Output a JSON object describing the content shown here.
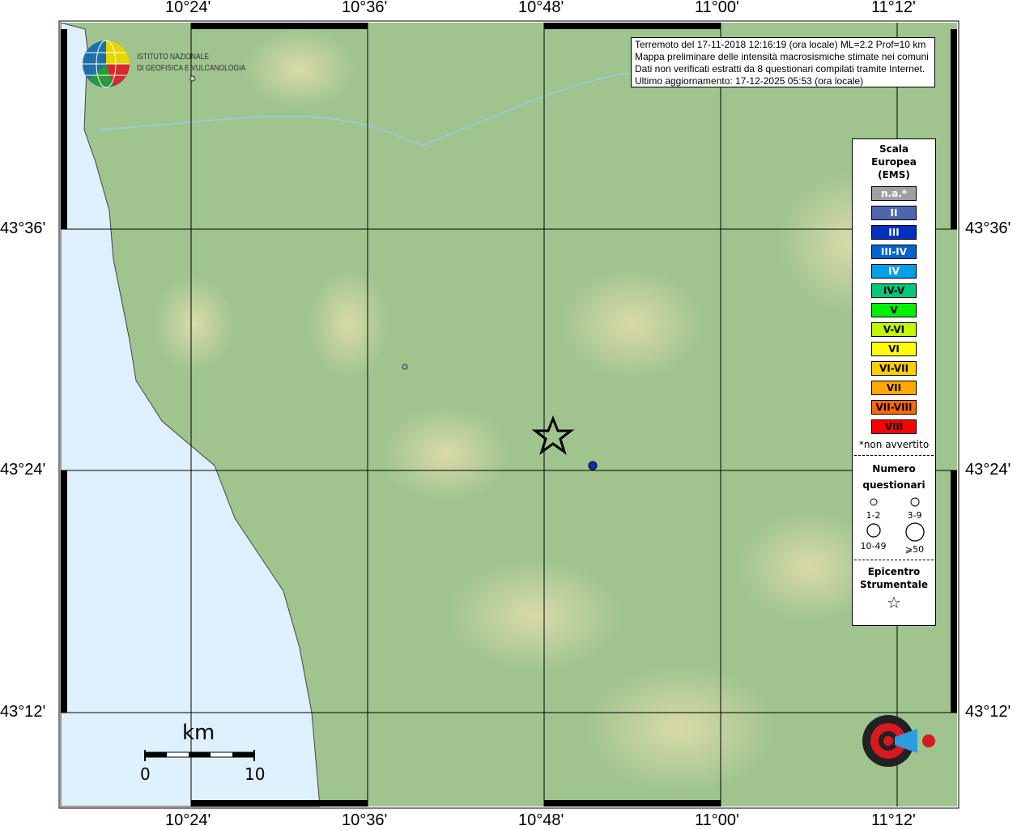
{
  "info": {
    "lines": [
      "Terremoto del 17-11-2018 12:16:19 (ora locale) ML=2.2 Prof=10 km",
      "Mappa preliminare delle intensità macrosismiche stimate nei comuni",
      "Dati non verificati estratti da 8 questionari compilati tramite Internet.",
      "Ultimo aggiornamento: 17-12-2025 05:53 (ora locale)"
    ]
  },
  "axes": {
    "lon": [
      "10°24'",
      "10°36'",
      "10°48'",
      "11°00'",
      "11°12'"
    ],
    "lat": [
      "43°36'",
      "43°24'",
      "43°12'"
    ]
  },
  "logo": {
    "line1": "ISTITUTO NAZIONALE",
    "line2": "DI GEOFISICA E VULCANOLOGIA",
    "hsit": "haisentitoilterremoto.it www"
  },
  "legend": {
    "title1": "Scala",
    "title2": "Europea",
    "title3": "(EMS)",
    "classes": [
      {
        "label": "n.a.*",
        "color": "#a0a0a0",
        "text": "#fff"
      },
      {
        "label": "II",
        "color": "#4f66ad",
        "text": "#fff"
      },
      {
        "label": "III",
        "color": "#0030c0",
        "text": "#fff"
      },
      {
        "label": "III-IV",
        "color": "#0064d0",
        "text": "#fff"
      },
      {
        "label": "IV",
        "color": "#00a0e8",
        "text": "#fff"
      },
      {
        "label": "IV-V",
        "color": "#00c878",
        "text": "#000"
      },
      {
        "label": "V",
        "color": "#00f000",
        "text": "#000"
      },
      {
        "label": "V-VI",
        "color": "#c0f800",
        "text": "#000"
      },
      {
        "label": "VI",
        "color": "#ffff00",
        "text": "#000"
      },
      {
        "label": "VI-VII",
        "color": "#ffd000",
        "text": "#000"
      },
      {
        "label": "VII",
        "color": "#ffa800",
        "text": "#000"
      },
      {
        "label": "VII-VIII",
        "color": "#ff6800",
        "text": "#000"
      },
      {
        "label": "VIII",
        "color": "#ff0000",
        "text": "#000"
      }
    ],
    "note": "*non avvertito",
    "num1": "Numero",
    "num2": "questionari",
    "sizes": [
      "1-2",
      "3-9",
      "10-49",
      "⩾50"
    ],
    "epi1": "Epicentro",
    "epi2": "Strumentale"
  },
  "scalebar": {
    "unit": "km",
    "min": "0",
    "max": "10"
  },
  "points": [
    {
      "intensity": "III",
      "color": "#0030c0"
    }
  ]
}
